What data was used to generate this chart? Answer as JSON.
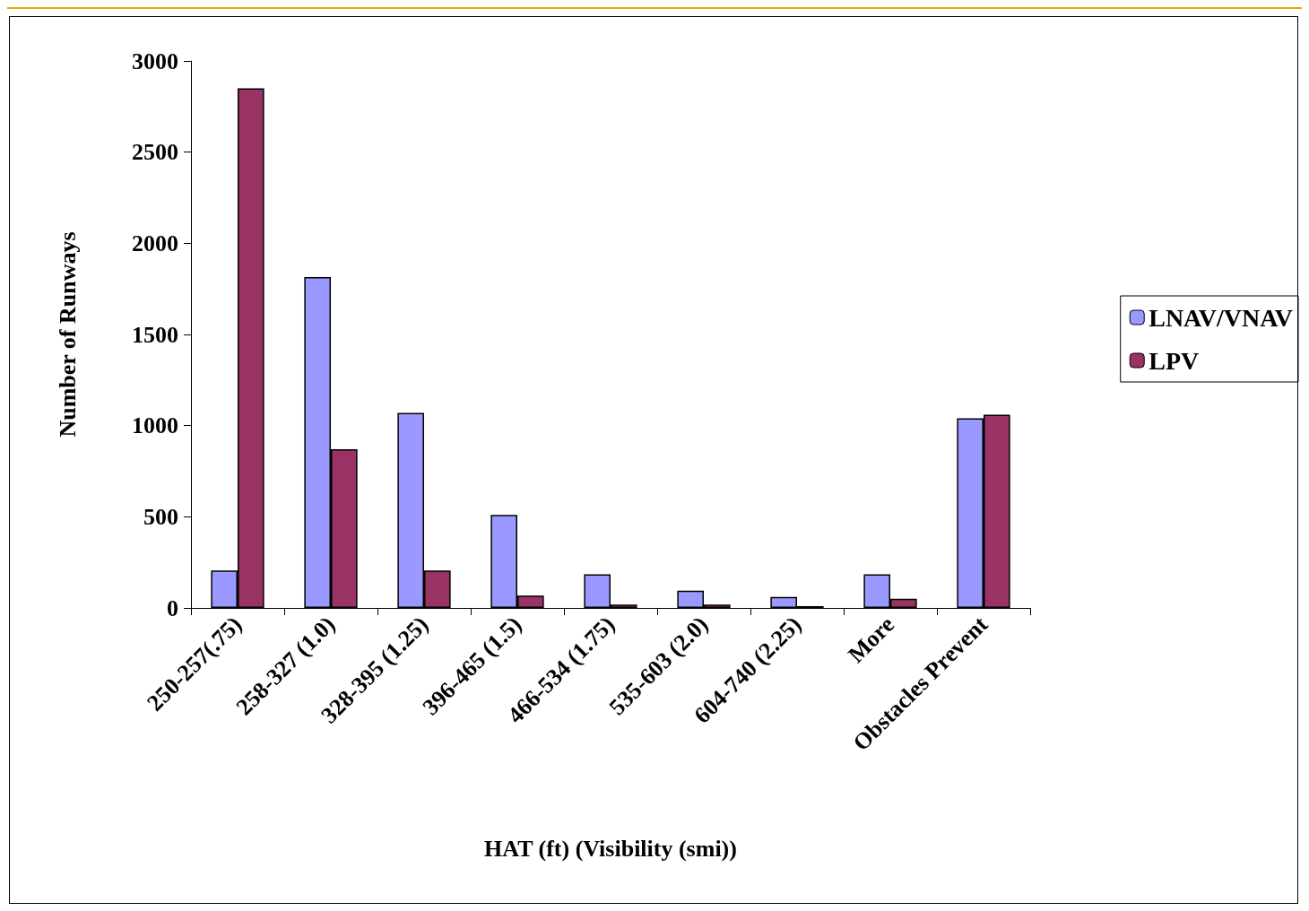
{
  "chart_data": {
    "type": "bar",
    "xlabel": "HAT (ft) (Visibility (smi))",
    "ylabel": "Number of Runways",
    "categories": [
      "250-257(.75)",
      "258-327 (1.0)",
      "328-395 (1.25)",
      "396-465 (1.5)",
      "466-534 (1.75)",
      "535-603 (2.0)",
      "604-740 (2.25)",
      "More",
      "Obstacles Prevent"
    ],
    "series": [
      {
        "name": "LNAV/VNAV",
        "color": "#9999ff",
        "values": [
          205,
          1815,
          1070,
          510,
          184,
          95,
          60,
          184,
          1040
        ]
      },
      {
        "name": "LPV",
        "color": "#993366",
        "values": [
          2850,
          870,
          205,
          68,
          18,
          18,
          10,
          50,
          1060
        ]
      }
    ],
    "ylim": [
      0,
      3000
    ],
    "yticks": [
      0,
      500,
      1000,
      1500,
      2000,
      2500,
      3000
    ],
    "grid": false,
    "legend": "right"
  }
}
